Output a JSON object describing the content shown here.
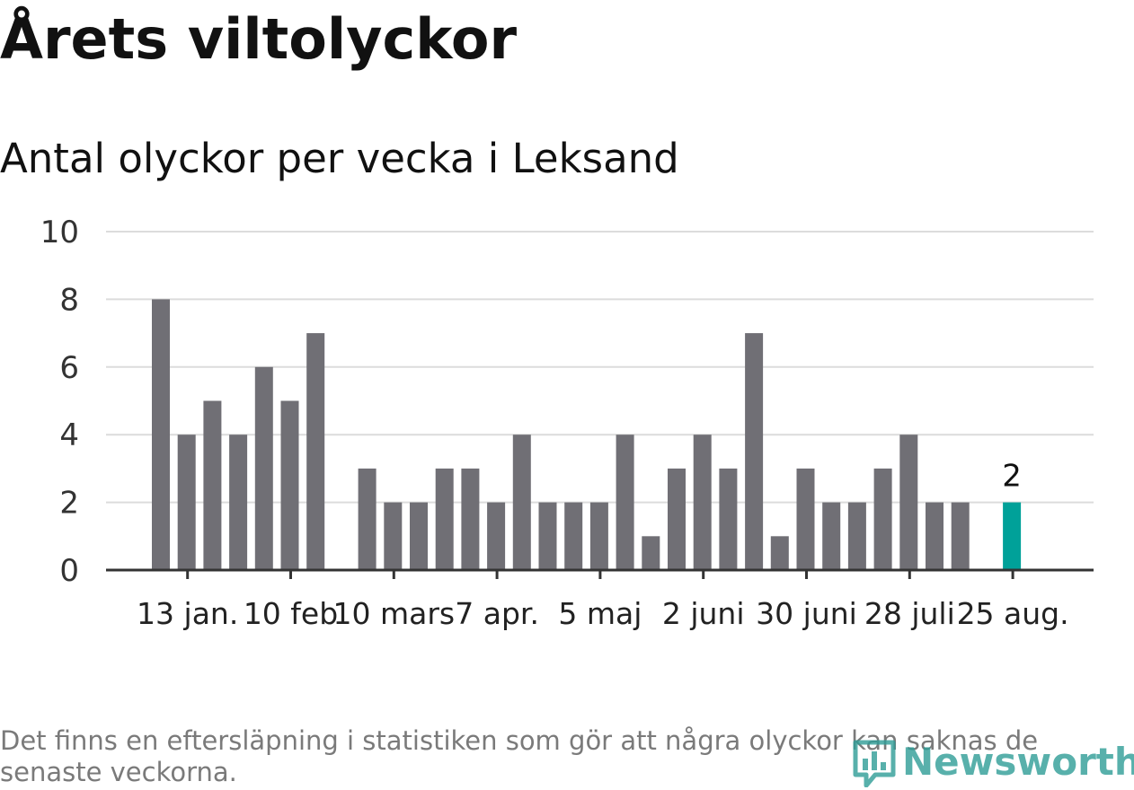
{
  "header": {
    "title": "Årets viltolyckor",
    "subtitle": "Antal olyckor per vecka i Leksand"
  },
  "footer": {
    "note_line1": "Det finns en eftersläpning i statistiken som gör att några olyckor kan saknas de",
    "note_line2": "senaste veckorna.",
    "brand": "Newsworthy",
    "brand_icon": "bar-chart-icon"
  },
  "colors": {
    "bar": "#706f75",
    "highlight": "#00a199",
    "grid": "#dcdcdc",
    "axis": "#333333",
    "brand": "#2f9d97"
  },
  "chart_data": {
    "type": "bar",
    "title": "Årets viltolyckor",
    "subtitle": "Antal olyckor per vecka i Leksand",
    "xlabel": "",
    "ylabel": "",
    "ylim": [
      0,
      10
    ],
    "yticks": [
      0,
      2,
      4,
      6,
      8,
      10
    ],
    "grid": true,
    "week_labels": [
      "13 jan.",
      "10 feb",
      "10 mars",
      "7 apr.",
      "5 maj",
      "2 juni",
      "30 juni",
      "28 juli",
      "25 aug."
    ],
    "week_label_bar_index": [
      1,
      5,
      9,
      13,
      17,
      21,
      25,
      29,
      33
    ],
    "values": [
      8,
      4,
      5,
      4,
      6,
      5,
      7,
      0,
      3,
      2,
      2,
      3,
      3,
      2,
      4,
      2,
      2,
      2,
      4,
      1,
      3,
      4,
      3,
      7,
      1,
      3,
      2,
      2,
      3,
      4,
      2,
      2,
      0,
      2
    ],
    "highlight_index": 33,
    "highlight_label": "2"
  }
}
